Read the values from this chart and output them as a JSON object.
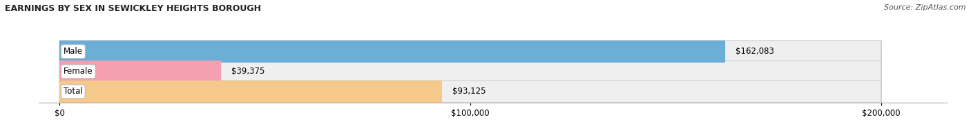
{
  "title": "EARNINGS BY SEX IN SEWICKLEY HEIGHTS BOROUGH",
  "source": "Source: ZipAtlas.com",
  "categories": [
    "Male",
    "Female",
    "Total"
  ],
  "values": [
    162083,
    39375,
    93125
  ],
  "bar_colors": [
    "#6baed6",
    "#f4a0b0",
    "#f5c98a"
  ],
  "xlim": [
    0,
    200000
  ],
  "xtick_labels": [
    "$0",
    "$100,000",
    "$200,000"
  ],
  "value_labels": [
    "$162,083",
    "$39,375",
    "$93,125"
  ],
  "title_fontsize": 9,
  "source_fontsize": 8,
  "label_fontsize": 8.5,
  "bar_height": 0.55,
  "figsize": [
    14.06,
    1.96
  ],
  "dpi": 100,
  "background_color": "#ffffff",
  "bar_track_color": "#efefef",
  "bar_track_edge_color": "#cccccc",
  "label_box_color": "#ffffff",
  "label_box_edge_color": "#bbbbbb"
}
